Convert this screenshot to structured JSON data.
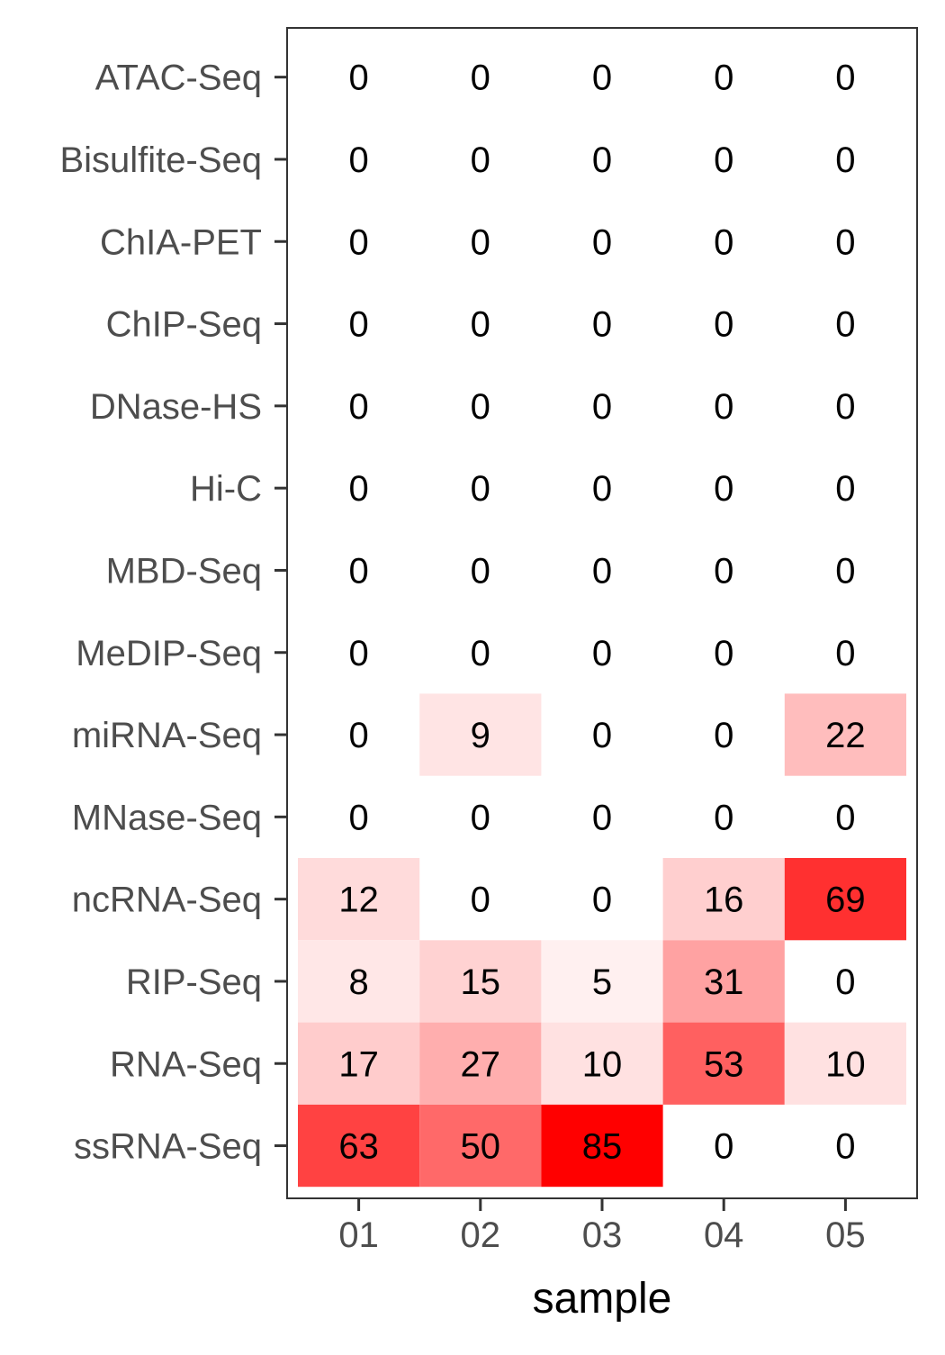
{
  "chart_data": {
    "type": "heatmap",
    "title": "",
    "xlabel": "sample",
    "ylabel": "",
    "x_categories": [
      "01",
      "02",
      "03",
      "04",
      "05"
    ],
    "y_categories": [
      "ATAC-Seq",
      "Bisulfite-Seq",
      "ChIA-PET",
      "ChIP-Seq",
      "DNase-HS",
      "Hi-C",
      "MBD-Seq",
      "MeDIP-Seq",
      "miRNA-Seq",
      "MNase-Seq",
      "ncRNA-Seq",
      "RIP-Seq",
      "RNA-Seq",
      "ssRNA-Seq"
    ],
    "values": [
      [
        0,
        0,
        0,
        0,
        0
      ],
      [
        0,
        0,
        0,
        0,
        0
      ],
      [
        0,
        0,
        0,
        0,
        0
      ],
      [
        0,
        0,
        0,
        0,
        0
      ],
      [
        0,
        0,
        0,
        0,
        0
      ],
      [
        0,
        0,
        0,
        0,
        0
      ],
      [
        0,
        0,
        0,
        0,
        0
      ],
      [
        0,
        0,
        0,
        0,
        0
      ],
      [
        0,
        9,
        0,
        0,
        22
      ],
      [
        0,
        0,
        0,
        0,
        0
      ],
      [
        12,
        0,
        0,
        16,
        69
      ],
      [
        8,
        15,
        5,
        31,
        0
      ],
      [
        17,
        27,
        10,
        53,
        10
      ],
      [
        63,
        50,
        85,
        0,
        0
      ]
    ],
    "color_low": "#ffffff",
    "color_high": "#ff0000",
    "value_range": [
      0,
      85
    ],
    "grid": false,
    "legend": "none"
  }
}
